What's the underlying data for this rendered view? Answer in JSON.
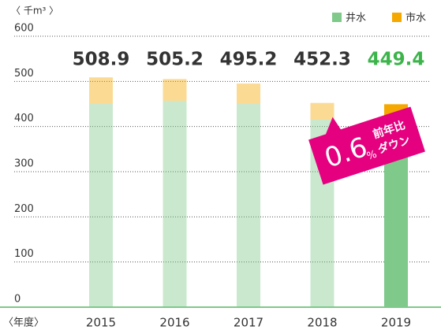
{
  "chart_data": {
    "type": "stacked_bar",
    "unit_label": "〈 千m³ 〉",
    "category_axis_label": "〈年度〉",
    "categories": [
      "2015",
      "2016",
      "2017",
      "2018",
      "2019"
    ],
    "series": [
      {
        "name": "井水",
        "color": "#7fc98a",
        "values": [
          450,
          457,
          450,
          415,
          417
        ]
      },
      {
        "name": "市水",
        "color": "#f5a800",
        "values": [
          58.9,
          48.2,
          45.2,
          37.3,
          32.4
        ]
      }
    ],
    "totals": [
      508.9,
      505.2,
      495.2,
      452.3,
      449.4
    ],
    "highlight": "2019",
    "ylim": [
      0,
      600
    ],
    "yticks": [
      0,
      100,
      200,
      300,
      400,
      500,
      600
    ],
    "grid": true,
    "legend": "top-right",
    "annotation": {
      "value": "0.6",
      "unit": "%",
      "lines": [
        "前年比",
        "ダウン"
      ],
      "color": "#e5007f"
    }
  }
}
